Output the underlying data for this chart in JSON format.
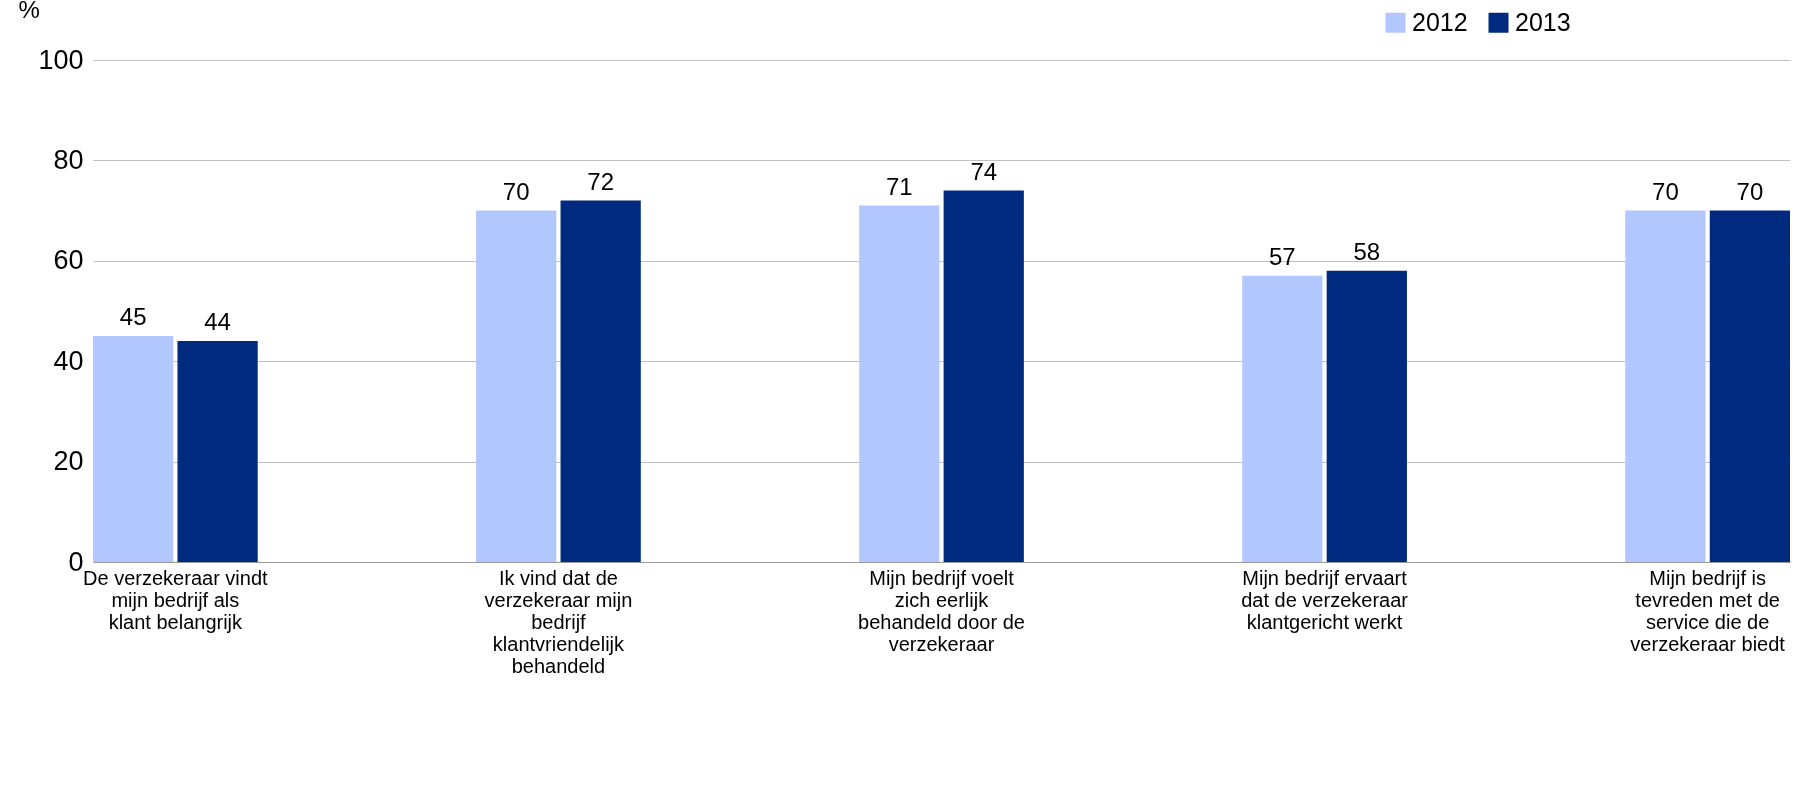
{
  "chart_data": {
    "type": "bar",
    "ylabel": "%",
    "categories": [
      "De verzekeraar vindt mijn bedrijf als klant belangrijk",
      "Ik vind dat de verzekeraar mijn bedrijf klantvriendelijk behandeld",
      "Mijn bedrijf voelt zich eerlijk behandeld door de verzekeraar",
      "Mijn bedrijf ervaart dat de verzekeraar klantgericht werkt",
      "Mijn bedrijf is tevreden met de service die de verzekeraar biedt"
    ],
    "series": [
      {
        "name": "2012",
        "color": "#b3c7ff",
        "values": [
          45,
          70,
          71,
          57,
          70
        ]
      },
      {
        "name": "2013",
        "color": "#002a7f",
        "values": [
          44,
          72,
          74,
          58,
          70
        ]
      }
    ],
    "ylim": [
      0,
      100
    ],
    "yticks": [
      0,
      20,
      40,
      60,
      80,
      100
    ],
    "grid": "y",
    "legend": "top right",
    "data_labels": true
  }
}
